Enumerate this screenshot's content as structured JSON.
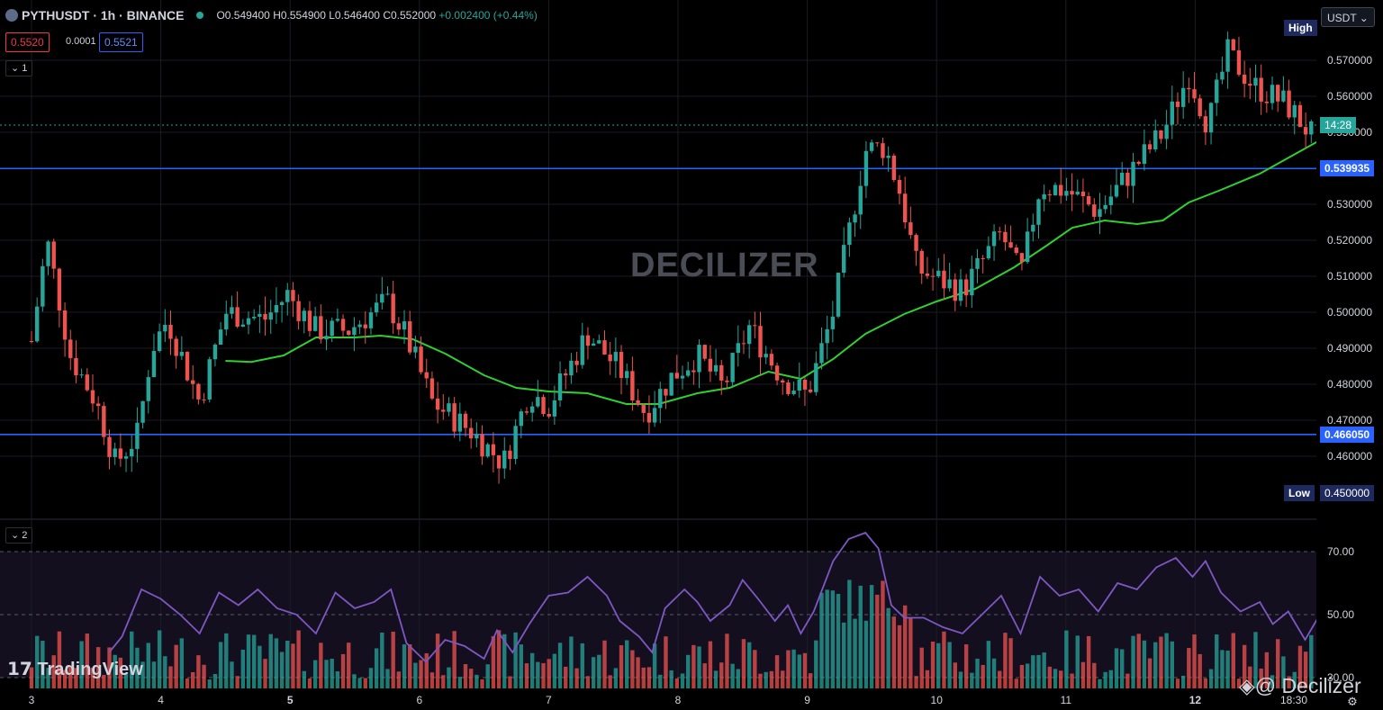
{
  "header": {
    "symbol": "PYTHUSDT · 1h · BINANCE",
    "open": "O0.549400",
    "high": "H0.554900",
    "low": "L0.546400",
    "close": "C0.552000",
    "change": "+0.002400 (+0.44%)",
    "sell_price": "0.5520",
    "spread": "0.0001",
    "buy_price": "0.5521"
  },
  "pane_labels": {
    "main": "1",
    "rsi": "2"
  },
  "currency": "USDT",
  "watermark": "DECILIZER",
  "branding": {
    "tradingview": "TradingView",
    "decilizer": "@ Decilizer"
  },
  "tags": {
    "high_label": "High",
    "low_label": "Low",
    "low_value": "0.450000",
    "countdown": "14:28",
    "level_upper": "0.539935",
    "level_lower": "0.466050"
  },
  "colors": {
    "up": "#26a69a",
    "down": "#ef5350",
    "ma": "#2fd02f",
    "rsi": "#7e57c2",
    "level": "#2962ff"
  },
  "chart_data": {
    "type": "candlestick",
    "timeframe": "1h",
    "price_axis": {
      "min": 0.45,
      "max": 0.58,
      "ticks": [
        "0.570000",
        "0.560000",
        "0.550000",
        "0.530000",
        "0.520000",
        "0.510000",
        "0.500000",
        "0.490000",
        "0.480000",
        "0.470000",
        "0.460000"
      ]
    },
    "x_ticks": [
      "3",
      "4",
      "5",
      "6",
      "7",
      "8",
      "9",
      "10",
      "11",
      "12",
      "18:30"
    ],
    "horizontal_levels": [
      0.539935,
      0.46605
    ],
    "last_price": 0.552,
    "price_path": [
      {
        "t": 0.0,
        "p": 0.492
      },
      {
        "t": 0.12,
        "p": 0.52
      },
      {
        "t": 0.3,
        "p": 0.488
      },
      {
        "t": 0.5,
        "p": 0.475
      },
      {
        "t": 0.65,
        "p": 0.458
      },
      {
        "t": 0.82,
        "p": 0.466
      },
      {
        "t": 0.93,
        "p": 0.49
      },
      {
        "t": 1.05,
        "p": 0.498
      },
      {
        "t": 1.3,
        "p": 0.475
      },
      {
        "t": 1.5,
        "p": 0.5
      },
      {
        "t": 1.8,
        "p": 0.498
      },
      {
        "t": 1.98,
        "p": 0.505
      },
      {
        "t": 2.2,
        "p": 0.495
      },
      {
        "t": 2.45,
        "p": 0.495
      },
      {
        "t": 2.75,
        "p": 0.503
      },
      {
        "t": 2.9,
        "p": 0.493
      },
      {
        "t": 3.1,
        "p": 0.475
      },
      {
        "t": 3.4,
        "p": 0.467
      },
      {
        "t": 3.65,
        "p": 0.458
      },
      {
        "t": 3.85,
        "p": 0.478
      },
      {
        "t": 4.0,
        "p": 0.474
      },
      {
        "t": 4.3,
        "p": 0.494
      },
      {
        "t": 4.55,
        "p": 0.484
      },
      {
        "t": 4.75,
        "p": 0.472
      },
      {
        "t": 4.95,
        "p": 0.482
      },
      {
        "t": 5.15,
        "p": 0.488
      },
      {
        "t": 5.35,
        "p": 0.479
      },
      {
        "t": 5.55,
        "p": 0.496
      },
      {
        "t": 5.8,
        "p": 0.482
      },
      {
        "t": 6.0,
        "p": 0.477
      },
      {
        "t": 6.2,
        "p": 0.5
      },
      {
        "t": 6.45,
        "p": 0.545
      },
      {
        "t": 6.6,
        "p": 0.546
      },
      {
        "t": 6.72,
        "p": 0.533
      },
      {
        "t": 6.85,
        "p": 0.512
      },
      {
        "t": 7.2,
        "p": 0.506
      },
      {
        "t": 7.5,
        "p": 0.522
      },
      {
        "t": 7.65,
        "p": 0.51
      },
      {
        "t": 7.8,
        "p": 0.535
      },
      {
        "t": 8.0,
        "p": 0.534
      },
      {
        "t": 8.25,
        "p": 0.528
      },
      {
        "t": 8.5,
        "p": 0.539
      },
      {
        "t": 8.75,
        "p": 0.55
      },
      {
        "t": 8.95,
        "p": 0.566
      },
      {
        "t": 9.1,
        "p": 0.552
      },
      {
        "t": 9.25,
        "p": 0.572
      },
      {
        "t": 9.45,
        "p": 0.563
      },
      {
        "t": 9.7,
        "p": 0.558
      },
      {
        "t": 9.95,
        "p": 0.547
      },
      {
        "t": 10.15,
        "p": 0.565
      },
      {
        "t": 10.38,
        "p": 0.542
      },
      {
        "t": 10.5,
        "p": 0.552
      }
    ],
    "moving_average": [
      {
        "t": 1.5,
        "p": 0.4865
      },
      {
        "t": 1.7,
        "p": 0.4862
      },
      {
        "t": 1.95,
        "p": 0.488
      },
      {
        "t": 2.2,
        "p": 0.493
      },
      {
        "t": 2.5,
        "p": 0.493
      },
      {
        "t": 2.7,
        "p": 0.4935
      },
      {
        "t": 2.95,
        "p": 0.4925
      },
      {
        "t": 3.2,
        "p": 0.4885
      },
      {
        "t": 3.5,
        "p": 0.4825
      },
      {
        "t": 3.75,
        "p": 0.479
      },
      {
        "t": 4.0,
        "p": 0.478
      },
      {
        "t": 4.3,
        "p": 0.4775
      },
      {
        "t": 4.6,
        "p": 0.4745
      },
      {
        "t": 4.85,
        "p": 0.4745
      },
      {
        "t": 5.15,
        "p": 0.4775
      },
      {
        "t": 5.4,
        "p": 0.479
      },
      {
        "t": 5.7,
        "p": 0.4835
      },
      {
        "t": 5.95,
        "p": 0.4815
      },
      {
        "t": 6.2,
        "p": 0.487
      },
      {
        "t": 6.45,
        "p": 0.494
      },
      {
        "t": 6.75,
        "p": 0.4995
      },
      {
        "t": 7.0,
        "p": 0.503
      },
      {
        "t": 7.3,
        "p": 0.5065
      },
      {
        "t": 7.6,
        "p": 0.5125
      },
      {
        "t": 7.85,
        "p": 0.5185
      },
      {
        "t": 8.05,
        "p": 0.5235
      },
      {
        "t": 8.3,
        "p": 0.5255
      },
      {
        "t": 8.55,
        "p": 0.5245
      },
      {
        "t": 8.75,
        "p": 0.5255
      },
      {
        "t": 8.95,
        "p": 0.5305
      },
      {
        "t": 9.2,
        "p": 0.534
      },
      {
        "t": 9.5,
        "p": 0.5385
      },
      {
        "t": 9.75,
        "p": 0.5435
      },
      {
        "t": 10.0,
        "p": 0.5485
      },
      {
        "t": 10.2,
        "p": 0.551
      },
      {
        "t": 10.35,
        "p": 0.552
      },
      {
        "t": 10.5,
        "p": 0.552
      }
    ],
    "rsi": {
      "ticks": [
        70,
        50,
        30
      ],
      "upper_band": 70,
      "lower_band": 30,
      "values": [
        {
          "t": 0.6,
          "p": 38
        },
        {
          "t": 0.7,
          "p": 43
        },
        {
          "t": 0.85,
          "p": 58
        },
        {
          "t": 1.0,
          "p": 55
        },
        {
          "t": 1.15,
          "p": 50
        },
        {
          "t": 1.3,
          "p": 44
        },
        {
          "t": 1.45,
          "p": 57
        },
        {
          "t": 1.6,
          "p": 53
        },
        {
          "t": 1.75,
          "p": 58
        },
        {
          "t": 1.9,
          "p": 52
        },
        {
          "t": 2.05,
          "p": 50
        },
        {
          "t": 2.2,
          "p": 44
        },
        {
          "t": 2.35,
          "p": 57
        },
        {
          "t": 2.5,
          "p": 52
        },
        {
          "t": 2.65,
          "p": 54
        },
        {
          "t": 2.78,
          "p": 58
        },
        {
          "t": 2.9,
          "p": 41
        },
        {
          "t": 3.05,
          "p": 35
        },
        {
          "t": 3.2,
          "p": 42
        },
        {
          "t": 3.35,
          "p": 40
        },
        {
          "t": 3.5,
          "p": 36
        },
        {
          "t": 3.6,
          "p": 45
        },
        {
          "t": 3.72,
          "p": 38
        },
        {
          "t": 3.85,
          "p": 47
        },
        {
          "t": 4.0,
          "p": 56
        },
        {
          "t": 4.15,
          "p": 57
        },
        {
          "t": 4.3,
          "p": 62
        },
        {
          "t": 4.45,
          "p": 56
        },
        {
          "t": 4.55,
          "p": 48
        },
        {
          "t": 4.7,
          "p": 43
        },
        {
          "t": 4.8,
          "p": 38
        },
        {
          "t": 4.9,
          "p": 52
        },
        {
          "t": 5.05,
          "p": 58
        },
        {
          "t": 5.15,
          "p": 54
        },
        {
          "t": 5.25,
          "p": 48
        },
        {
          "t": 5.4,
          "p": 53
        },
        {
          "t": 5.5,
          "p": 61
        },
        {
          "t": 5.62,
          "p": 55
        },
        {
          "t": 5.75,
          "p": 48
        },
        {
          "t": 5.85,
          "p": 53
        },
        {
          "t": 5.95,
          "p": 44
        },
        {
          "t": 6.05,
          "p": 51
        },
        {
          "t": 6.2,
          "p": 67
        },
        {
          "t": 6.32,
          "p": 74
        },
        {
          "t": 6.45,
          "p": 76
        },
        {
          "t": 6.55,
          "p": 71
        },
        {
          "t": 6.65,
          "p": 53
        },
        {
          "t": 6.75,
          "p": 49
        },
        {
          "t": 6.9,
          "p": 49
        },
        {
          "t": 7.05,
          "p": 46
        },
        {
          "t": 7.2,
          "p": 44
        },
        {
          "t": 7.35,
          "p": 50
        },
        {
          "t": 7.5,
          "p": 56
        },
        {
          "t": 7.65,
          "p": 44
        },
        {
          "t": 7.8,
          "p": 62
        },
        {
          "t": 7.95,
          "p": 56
        },
        {
          "t": 8.1,
          "p": 58
        },
        {
          "t": 8.25,
          "p": 51
        },
        {
          "t": 8.4,
          "p": 60
        },
        {
          "t": 8.55,
          "p": 58
        },
        {
          "t": 8.7,
          "p": 65
        },
        {
          "t": 8.85,
          "p": 68
        },
        {
          "t": 8.98,
          "p": 62
        },
        {
          "t": 9.08,
          "p": 67
        },
        {
          "t": 9.2,
          "p": 57
        },
        {
          "t": 9.35,
          "p": 51
        },
        {
          "t": 9.5,
          "p": 54
        },
        {
          "t": 9.6,
          "p": 47
        },
        {
          "t": 9.72,
          "p": 51
        },
        {
          "t": 9.85,
          "p": 42
        },
        {
          "t": 9.95,
          "p": 49
        },
        {
          "t": 10.1,
          "p": 59
        },
        {
          "t": 10.2,
          "p": 54
        },
        {
          "t": 10.32,
          "p": 44
        },
        {
          "t": 10.42,
          "p": 49
        },
        {
          "t": 10.5,
          "p": 50
        }
      ]
    }
  }
}
